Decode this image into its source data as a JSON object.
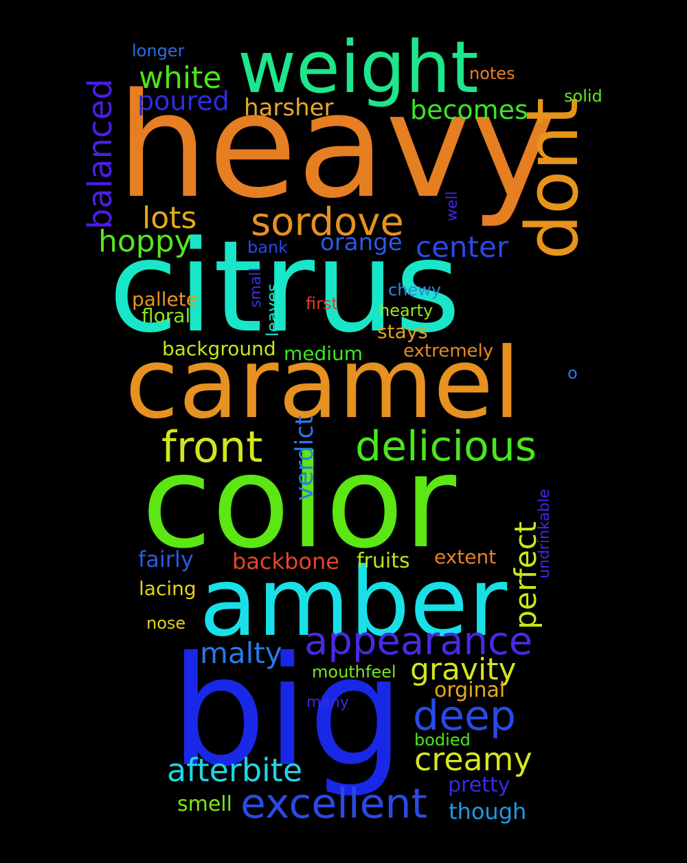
{
  "words": [
    {
      "text": "heavy",
      "color": "#e67e22"
    },
    {
      "text": "citrus",
      "color": "#19e6c8"
    },
    {
      "text": "caramel",
      "color": "#e69120"
    },
    {
      "text": "color",
      "color": "#5ce614"
    },
    {
      "text": "amber",
      "color": "#19e0e6"
    },
    {
      "text": "big",
      "color": "#1928e6"
    },
    {
      "text": "weight",
      "color": "#1de68c"
    },
    {
      "text": "dont",
      "color": "#e6941a"
    },
    {
      "text": "balanced",
      "color": "#4a1ee6"
    },
    {
      "text": "longer",
      "color": "#2b6ee6"
    },
    {
      "text": "white",
      "color": "#4ce614"
    },
    {
      "text": "poured",
      "color": "#2a2ee6"
    },
    {
      "text": "harsher",
      "color": "#e6aa28"
    },
    {
      "text": "becomes",
      "color": "#3be628"
    },
    {
      "text": "notes",
      "color": "#e6822a"
    },
    {
      "text": "solid",
      "color": "#64e61e"
    },
    {
      "text": "lots",
      "color": "#e6aa1e"
    },
    {
      "text": "sordove",
      "color": "#e69123"
    },
    {
      "text": "well",
      "color": "#3c28e6"
    },
    {
      "text": "hoppy",
      "color": "#56e61e"
    },
    {
      "text": "bank",
      "color": "#2a48e6"
    },
    {
      "text": "orange",
      "color": "#2a5ae6"
    },
    {
      "text": "center",
      "color": "#2a4ae6"
    },
    {
      "text": "small",
      "color": "#3a32e6"
    },
    {
      "text": "chewy",
      "color": "#2a8ae6"
    },
    {
      "text": "pallete",
      "color": "#e6961e"
    },
    {
      "text": "leaves",
      "color": "#1ee6cc"
    },
    {
      "text": "first",
      "color": "#e63a28"
    },
    {
      "text": "hearty",
      "color": "#9ae61e"
    },
    {
      "text": "floral",
      "color": "#8ae61e"
    },
    {
      "text": "stays",
      "color": "#e6a01e"
    },
    {
      "text": "background",
      "color": "#c8e61e"
    },
    {
      "text": "medium",
      "color": "#3ae628"
    },
    {
      "text": "extremely",
      "color": "#e68a1e"
    },
    {
      "text": "o",
      "color": "#2a7ae6"
    },
    {
      "text": "front",
      "color": "#d2e61e"
    },
    {
      "text": "delicious",
      "color": "#4ae61e"
    },
    {
      "text": "verdict",
      "color": "#2a7ae6"
    },
    {
      "text": "undrinkable",
      "color": "#3a2ae6"
    },
    {
      "text": "perfect",
      "color": "#c8e61e"
    },
    {
      "text": "fairly",
      "color": "#2a5ae6"
    },
    {
      "text": "backbone",
      "color": "#e6462a"
    },
    {
      "text": "fruits",
      "color": "#b4e61e"
    },
    {
      "text": "extent",
      "color": "#e6822a"
    },
    {
      "text": "lacing",
      "color": "#e6d21e"
    },
    {
      "text": "nose",
      "color": "#e6d21e"
    },
    {
      "text": "appearance",
      "color": "#4a28e6"
    },
    {
      "text": "malty",
      "color": "#2a7ae6"
    },
    {
      "text": "gravity",
      "color": "#d2e61e"
    },
    {
      "text": "mouthfeel",
      "color": "#7ae61e"
    },
    {
      "text": "orginal",
      "color": "#e6aa1e"
    },
    {
      "text": "deep",
      "color": "#2a4ae6"
    },
    {
      "text": "many",
      "color": "#3a2ae6"
    },
    {
      "text": "bodied",
      "color": "#4ae61e"
    },
    {
      "text": "creamy",
      "color": "#d8e61e"
    },
    {
      "text": "afterbite",
      "color": "#1ed6e6"
    },
    {
      "text": "pretty",
      "color": "#3a2ae6"
    },
    {
      "text": "excellent",
      "color": "#2a4ae6"
    },
    {
      "text": "smell",
      "color": "#7ae61e"
    },
    {
      "text": "though",
      "color": "#1e9ae6"
    }
  ]
}
